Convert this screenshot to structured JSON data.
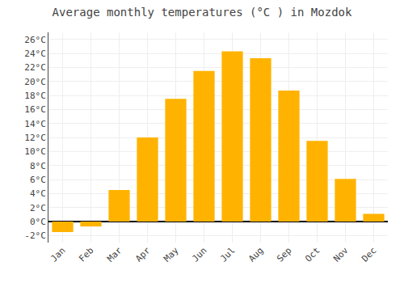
{
  "chart_data": {
    "type": "bar",
    "title": "Average monthly temperatures (°C ) in Mozdok",
    "categories": [
      "Jan",
      "Feb",
      "Mar",
      "Apr",
      "May",
      "Jun",
      "Jul",
      "Aug",
      "Sep",
      "Oct",
      "Nov",
      "Dec"
    ],
    "values": [
      -1.5,
      -0.7,
      4.5,
      12.0,
      17.5,
      21.5,
      24.3,
      23.3,
      18.7,
      11.5,
      6.1,
      1.1
    ],
    "color": "#FFB300",
    "ylim": [
      -3,
      27
    ],
    "yticks": [
      {
        "value": -2,
        "label": "-2°C"
      },
      {
        "value": 0,
        "label": "0°C"
      },
      {
        "value": 2,
        "label": "2°C"
      },
      {
        "value": 4,
        "label": "4°C"
      },
      {
        "value": 6,
        "label": "6°C"
      },
      {
        "value": 8,
        "label": "8°C"
      },
      {
        "value": 10,
        "label": "10°C"
      },
      {
        "value": 12,
        "label": "12°C"
      },
      {
        "value": 14,
        "label": "14°C"
      },
      {
        "value": 16,
        "label": "16°C"
      },
      {
        "value": 18,
        "label": "18°C"
      },
      {
        "value": 20,
        "label": "20°C"
      },
      {
        "value": 22,
        "label": "22°C"
      },
      {
        "value": 24,
        "label": "24°C"
      },
      {
        "value": 26,
        "label": "26°C"
      }
    ],
    "grid": true
  }
}
